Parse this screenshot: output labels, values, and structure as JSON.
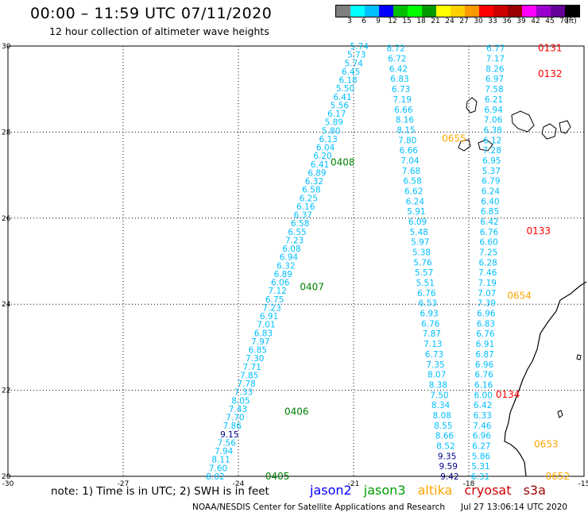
{
  "header": {
    "title": "00:00 – 11:59 UTC 07/11/2020",
    "subtitle": "12 hour collection of altimeter wave heights"
  },
  "legend": {
    "swatches": [
      "#7f7f7f",
      "#00ffff",
      "#00bfff",
      "#0000ff",
      "#00bf00",
      "#00ff00",
      "#009900",
      "#ffff00",
      "#ffd000",
      "#ff9900",
      "#ff0000",
      "#cc0000",
      "#990000",
      "#ff00ff",
      "#9900cc",
      "#660099",
      "#000000"
    ],
    "labels": [
      "3",
      "6",
      "9",
      "12",
      "15",
      "18",
      "21",
      "24",
      "27",
      "30",
      "33",
      "36",
      "39",
      "42",
      "45",
      "70",
      "(ft)"
    ]
  },
  "axes": {
    "x_ticks": [
      "-30",
      "-27",
      "-24",
      "-21",
      "-18",
      "-15"
    ],
    "y_ticks": [
      "30",
      "28",
      "26",
      "24",
      "22",
      "20"
    ]
  },
  "passes": [
    {
      "label": "0405",
      "color": "#008000",
      "lat": 20.0,
      "lon": -23.3
    },
    {
      "label": "0406",
      "color": "#008000",
      "lat": 21.5,
      "lon": -22.8
    },
    {
      "label": "0407",
      "color": "#008000",
      "lat": 24.4,
      "lon": -22.4
    },
    {
      "label": "0408",
      "color": "#008000",
      "lat": 27.3,
      "lon": -21.6
    },
    {
      "label": "0655",
      "color": "#ffa500",
      "lat": 27.85,
      "lon": -18.7
    },
    {
      "label": "0654",
      "color": "#ffa500",
      "lat": 24.2,
      "lon": -17.0
    },
    {
      "label": "0653",
      "color": "#ffa500",
      "lat": 20.75,
      "lon": -16.3
    },
    {
      "label": "0652",
      "color": "#ffa500",
      "lat": 20.0,
      "lon": -16.0
    },
    {
      "label": "0131",
      "color": "#ff0000",
      "lat": 29.95,
      "lon": -16.2
    },
    {
      "label": "0132",
      "color": "#ff0000",
      "lat": 29.35,
      "lon": -16.2
    },
    {
      "label": "0133",
      "color": "#ff0000",
      "lat": 25.7,
      "lon": -16.5
    },
    {
      "label": "0134",
      "color": "#ff0000",
      "lat": 21.9,
      "lon": -17.3
    }
  ],
  "tracks": [
    {
      "name": "track-a",
      "start": {
        "lat": 20.0,
        "lon": -24.6
      },
      "end": {
        "lat": 30.0,
        "lon": -20.85
      },
      "values": [
        "8.02",
        "7.60",
        "8.11",
        "7.94",
        "7.56",
        "9.15",
        "7.86",
        "7.70",
        "7.43",
        "8.05",
        "7.33",
        "7.78",
        "7.85",
        "7.71",
        "7.30",
        "6.85",
        "7.97",
        "6.83",
        "7.01",
        "6.91",
        "7.23",
        "6.75",
        "7.12",
        "6.06",
        "6.89",
        "6.32",
        "6.94",
        "6.08",
        "7.23",
        "6.55",
        "6.58",
        "6.37",
        "6.16",
        "6.25",
        "6.58",
        "6.32",
        "6.89",
        "6.41",
        "6.20",
        "6.04",
        "6.13",
        "5.80",
        "5.89",
        "6.17",
        "5.56",
        "6.41",
        "5.50",
        "6.18",
        "6.45",
        "5.74",
        "5.73",
        "5.74"
      ],
      "colors": {
        "9.15": "#00008b"
      }
    },
    {
      "name": "track-b",
      "start": {
        "lat": 20.0,
        "lon": -18.5
      },
      "end": {
        "lat": 29.95,
        "lon": -19.9
      },
      "values": [
        "9.42",
        "9.59",
        "9.35",
        "8.52",
        "8.66",
        "8.55",
        "8.08",
        "8.34",
        "7.50",
        "8.38",
        "8.07",
        "7.35",
        "6.73",
        "7.13",
        "7.87",
        "6.76",
        "6.93",
        "6.53",
        "6.76",
        "5.51",
        "5.57",
        "5.76",
        "5.38",
        "5.97",
        "5.48",
        "6.09",
        "5.91",
        "6.24",
        "6.62",
        "6.58",
        "7.68",
        "7.04",
        "6.66",
        "7.80",
        "8.15",
        "8.16",
        "6.66",
        "7.19",
        "6.73",
        "6.83",
        "6.42",
        "6.72",
        "8.72"
      ],
      "colors": {
        "9.42": "#00008b",
        "9.59": "#00008b",
        "9.35": "#00008b"
      }
    },
    {
      "name": "track-c",
      "start": {
        "lat": 20.0,
        "lon": -17.7
      },
      "end": {
        "lat": 29.95,
        "lon": -17.3
      },
      "values": [
        "6.31",
        "5.31",
        "5.86",
        "6.27",
        "6.96",
        "7.46",
        "6.33",
        "6.42",
        "6.00",
        "6.16",
        "6.76",
        "6.96",
        "6.87",
        "6.91",
        "6.76",
        "6.83",
        "6.96",
        "7.39",
        "7.07",
        "7.19",
        "7.46",
        "6.28",
        "7.25",
        "6.60",
        "6.76",
        "6.42",
        "6.85",
        "6.40",
        "6.24",
        "6.79",
        "5.37",
        "6.95",
        "7.28",
        "6.12",
        "6.38",
        "7.06",
        "6.94",
        "6.21",
        "7.58",
        "6.97",
        "8.26",
        "7.17",
        "6.77"
      ],
      "colors": {}
    }
  ],
  "footer": {
    "note": "note: 1) Time is in UTC; 2) SWH is in feet",
    "sat_jason2": "jason2",
    "sat_jason3": "jason3",
    "sat_altika": "altika",
    "sat_cryosat": "cryosat",
    "sat_s3a": "s3a",
    "credit": "NOAA/NESDIS Center for Satellite Applications and Research",
    "timestamp": "Jul 27 13:06:14 UTC 2020"
  },
  "sat_colors": {
    "jason2": "#0000ff",
    "jason3": "#00a000",
    "altika": "#ffa500",
    "cryosat": "#cc0000",
    "s3a": "#990000"
  }
}
